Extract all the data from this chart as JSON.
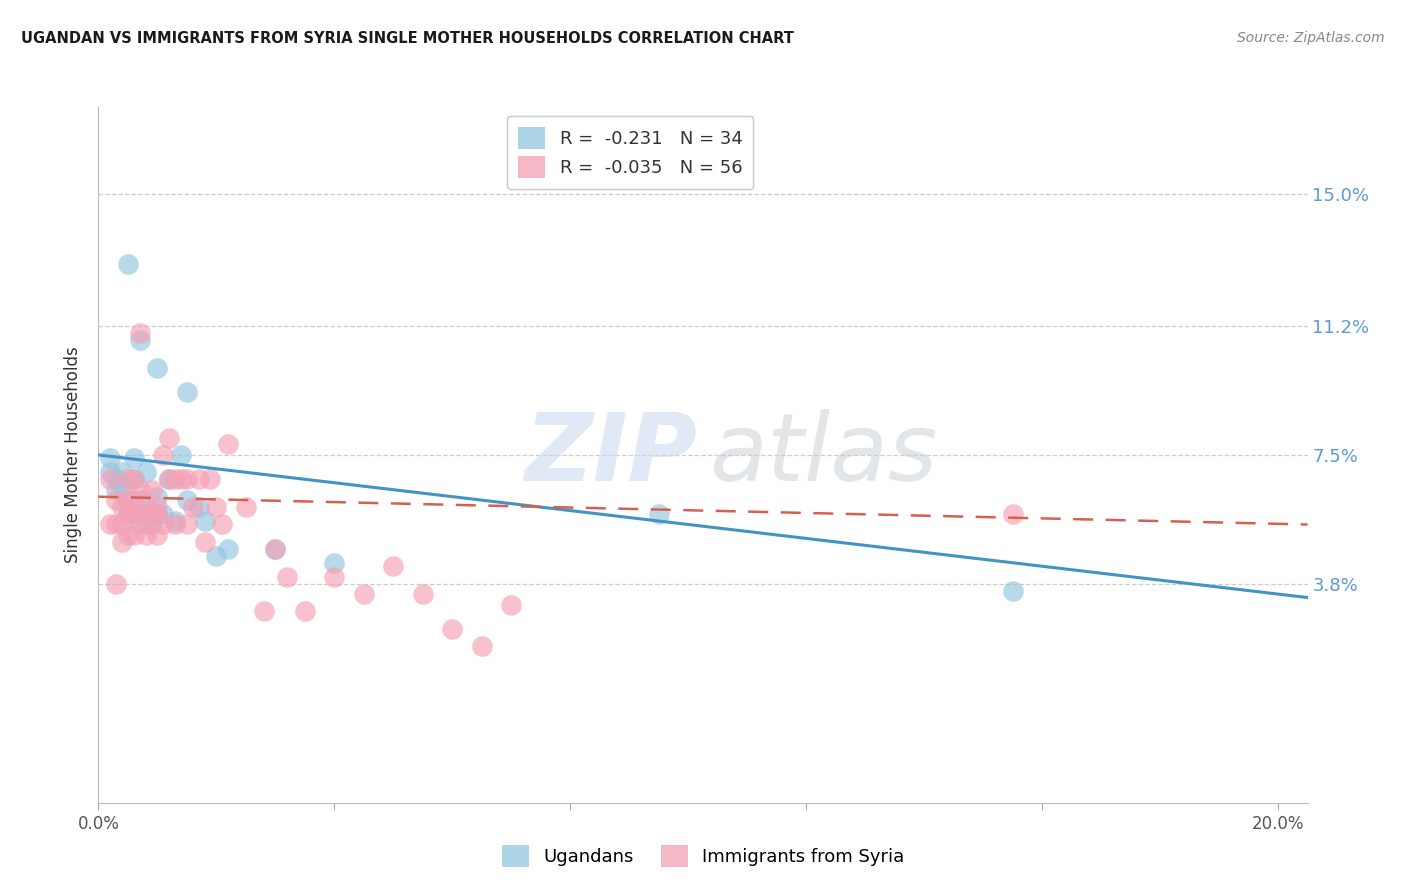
{
  "title": "UGANDAN VS IMMIGRANTS FROM SYRIA SINGLE MOTHER HOUSEHOLDS CORRELATION CHART",
  "source": "Source: ZipAtlas.com",
  "ylabel": "Single Mother Households",
  "ytick_labels": [
    "15.0%",
    "11.2%",
    "7.5%",
    "3.8%"
  ],
  "ytick_values": [
    0.15,
    0.112,
    0.075,
    0.038
  ],
  "xlim": [
    0.0,
    0.205
  ],
  "ylim": [
    -0.025,
    0.175
  ],
  "blue_color": "#92c5de",
  "pink_color": "#f4a0b5",
  "blue_line_color": "#4393c3",
  "pink_line_color": "#d6604d",
  "background_color": "#ffffff",
  "grid_color": "#c8c8c8",
  "ugandan_x": [
    0.005,
    0.007,
    0.01,
    0.015,
    0.002,
    0.002,
    0.003,
    0.003,
    0.004,
    0.004,
    0.005,
    0.005,
    0.006,
    0.006,
    0.007,
    0.007,
    0.008,
    0.008,
    0.009,
    0.01,
    0.01,
    0.011,
    0.012,
    0.013,
    0.014,
    0.015,
    0.017,
    0.018,
    0.02,
    0.022,
    0.03,
    0.04,
    0.095,
    0.155
  ],
  "ugandan_y": [
    0.13,
    0.108,
    0.1,
    0.093,
    0.074,
    0.07,
    0.068,
    0.065,
    0.066,
    0.07,
    0.062,
    0.058,
    0.074,
    0.068,
    0.062,
    0.055,
    0.07,
    0.058,
    0.055,
    0.063,
    0.058,
    0.058,
    0.068,
    0.056,
    0.075,
    0.062,
    0.06,
    0.056,
    0.046,
    0.048,
    0.048,
    0.044,
    0.058,
    0.036
  ],
  "syria_x": [
    0.002,
    0.002,
    0.003,
    0.003,
    0.003,
    0.004,
    0.004,
    0.004,
    0.005,
    0.005,
    0.005,
    0.005,
    0.006,
    0.006,
    0.006,
    0.006,
    0.007,
    0.007,
    0.007,
    0.008,
    0.008,
    0.008,
    0.009,
    0.009,
    0.01,
    0.01,
    0.01,
    0.011,
    0.011,
    0.012,
    0.012,
    0.013,
    0.013,
    0.014,
    0.015,
    0.015,
    0.016,
    0.017,
    0.018,
    0.019,
    0.02,
    0.021,
    0.022,
    0.025,
    0.028,
    0.03,
    0.032,
    0.035,
    0.04,
    0.045,
    0.05,
    0.055,
    0.06,
    0.065,
    0.07,
    0.155
  ],
  "syria_y": [
    0.068,
    0.055,
    0.062,
    0.055,
    0.038,
    0.06,
    0.055,
    0.05,
    0.068,
    0.062,
    0.058,
    0.052,
    0.068,
    0.062,
    0.058,
    0.052,
    0.11,
    0.065,
    0.058,
    0.06,
    0.055,
    0.052,
    0.065,
    0.058,
    0.06,
    0.058,
    0.052,
    0.075,
    0.055,
    0.08,
    0.068,
    0.068,
    0.055,
    0.068,
    0.068,
    0.055,
    0.06,
    0.068,
    0.05,
    0.068,
    0.06,
    0.055,
    0.078,
    0.06,
    0.03,
    0.048,
    0.04,
    0.03,
    0.04,
    0.035,
    0.043,
    0.035,
    0.025,
    0.02,
    0.032,
    0.058
  ],
  "blue_trendline_x": [
    0.0,
    0.205
  ],
  "blue_trendline_y": [
    0.075,
    0.034
  ],
  "pink_trendline_x": [
    0.0,
    0.205
  ],
  "pink_trendline_y": [
    0.063,
    0.055
  ],
  "legend_labels": [
    "R =  -0.231   N = 34",
    "R =  -0.035   N = 56"
  ],
  "bottom_legend_labels": [
    "Ugandans",
    "Immigrants from Syria"
  ]
}
